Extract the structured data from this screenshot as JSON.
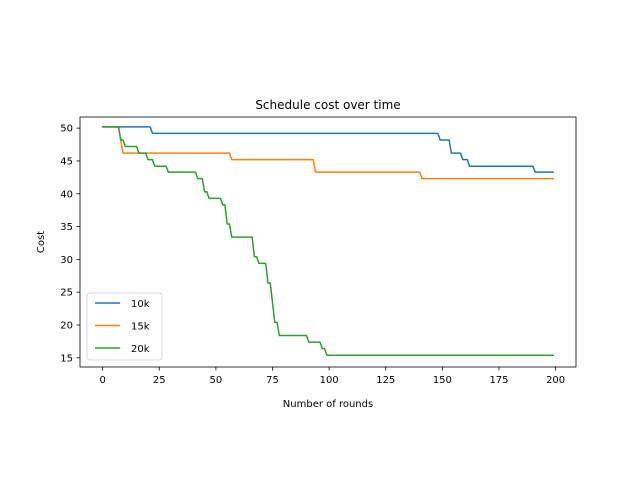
{
  "chart_data": {
    "type": "line",
    "title": "Schedule cost over time",
    "xlabel": "Number of rounds",
    "ylabel": "Cost",
    "xlim": [
      -10,
      209
    ],
    "ylim": [
      13.6,
      51.7
    ],
    "xticks": [
      0,
      25,
      50,
      75,
      100,
      125,
      150,
      175,
      200
    ],
    "yticks": [
      15,
      20,
      25,
      30,
      35,
      40,
      45,
      50
    ],
    "grid": false,
    "legend_position": "lower-left",
    "series": [
      {
        "name": "10k",
        "color": "#1f77b4",
        "x": [
          0,
          21,
          22,
          148,
          149,
          153,
          154,
          158,
          159,
          161,
          162,
          190,
          191,
          199
        ],
        "y": [
          50.2,
          50.2,
          49.2,
          49.2,
          48.2,
          48.2,
          46.2,
          46.2,
          45.2,
          45.2,
          44.2,
          44.2,
          43.3,
          43.3
        ]
      },
      {
        "name": "15k",
        "color": "#ff7f0e",
        "x": [
          0,
          7,
          9,
          56,
          57,
          93,
          94,
          140,
          141,
          199
        ],
        "y": [
          50.2,
          50.2,
          46.2,
          46.2,
          45.2,
          45.2,
          43.3,
          43.3,
          42.3,
          42.3
        ]
      },
      {
        "name": "20k",
        "color": "#2ca02c",
        "x": [
          0,
          7,
          8,
          9,
          10,
          15,
          16,
          19,
          20,
          22,
          23,
          28,
          29,
          41,
          42,
          44,
          45,
          46,
          47,
          52,
          53,
          54,
          55,
          56,
          57,
          66,
          67,
          68,
          69,
          72,
          73,
          74,
          75,
          76,
          77,
          78,
          90,
          91,
          96,
          97,
          98,
          99,
          100,
          199
        ],
        "y": [
          50.2,
          50.2,
          48.2,
          48.2,
          47.2,
          47.2,
          46.2,
          46.2,
          45.2,
          45.2,
          44.2,
          44.2,
          43.3,
          43.3,
          42.3,
          42.3,
          40.3,
          40.3,
          39.3,
          39.3,
          38.3,
          38.3,
          35.4,
          35.4,
          33.4,
          33.4,
          30.4,
          30.4,
          29.4,
          29.4,
          26.4,
          26.4,
          23.4,
          20.4,
          20.4,
          18.4,
          18.4,
          17.4,
          17.4,
          16.4,
          16.4,
          15.4,
          15.4,
          15.4
        ]
      }
    ]
  }
}
